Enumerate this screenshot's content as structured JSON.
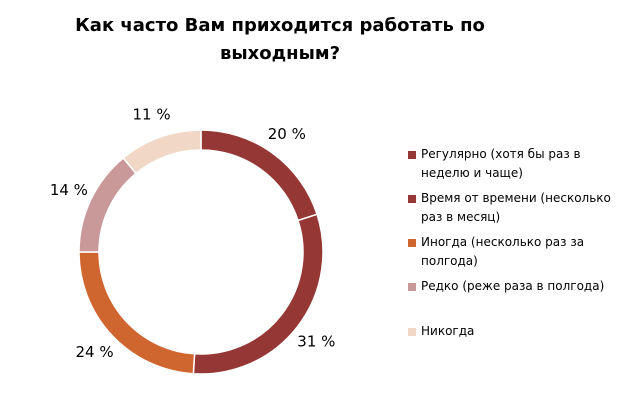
{
  "chart_data": {
    "type": "pie",
    "subtype": "donut",
    "title": "Как часто Вам приходится работать по выходным?",
    "categories": [
      "Регулярно (хотя бы раз в неделю и чаще)",
      "Время от времени (несколько раз в месяц)",
      "Иногда (несколько раз за полгода)",
      "Редко (реже раза в полгода)",
      "Никогда"
    ],
    "values": [
      20,
      31,
      24,
      14,
      11
    ],
    "data_labels": [
      "20 %",
      "31 %",
      "24 %",
      "14 %",
      "11 %"
    ],
    "colors": [
      "#953735",
      "#953735",
      "#d0662f",
      "#c9999a",
      "#f1d7c5"
    ],
    "legend_position": "right"
  }
}
